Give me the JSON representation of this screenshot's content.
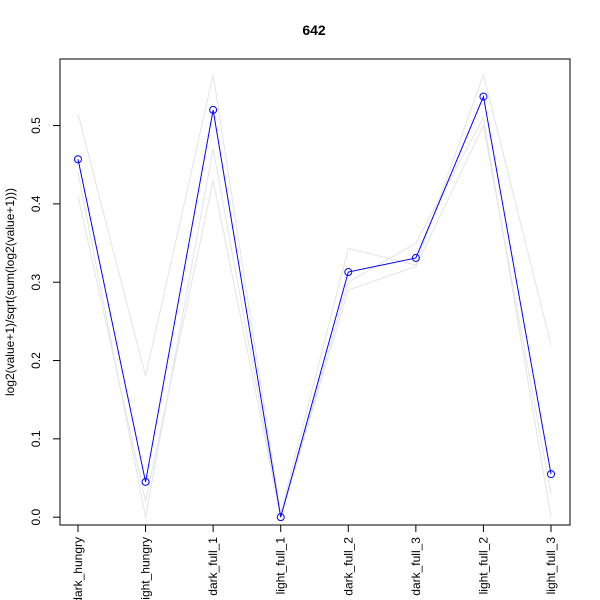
{
  "chart_data": {
    "type": "line",
    "title": "642",
    "xlabel": "",
    "ylabel": "log2(value+1)/sqrt(sum(log2(value+1)))",
    "categories": [
      "dark_hungry",
      "light_hungry",
      "dark_full_1",
      "light_full_1",
      "dark_full_2",
      "dark_full_3",
      "light_full_2",
      "light_full_3"
    ],
    "yticks": [
      0.0,
      0.1,
      0.2,
      0.3,
      0.4,
      0.5
    ],
    "ytick_labels": [
      "0.0",
      "0.1",
      "0.2",
      "0.3",
      "0.4",
      "0.5"
    ],
    "ylim": [
      -0.01,
      0.585
    ],
    "grid": false,
    "series": [
      {
        "values": [
          0.457,
          0.045,
          0.52,
          0.0,
          0.313,
          0.331,
          0.537,
          0.055
        ],
        "color": "#0000ff",
        "markers": "open-circle"
      }
    ],
    "background_series": [
      {
        "values": [
          0.515,
          0.18,
          0.565,
          0.005,
          0.343,
          0.322,
          0.565,
          0.22
        ],
        "color": "#e4e4e4"
      },
      {
        "values": [
          0.44,
          0.0,
          0.47,
          0.0,
          0.3,
          0.35,
          0.51,
          0.0
        ],
        "color": "#e4e4e4"
      },
      {
        "values": [
          0.41,
          0.02,
          0.43,
          0.0,
          0.29,
          0.32,
          0.5,
          0.03
        ],
        "color": "#e4e4e4"
      }
    ]
  }
}
